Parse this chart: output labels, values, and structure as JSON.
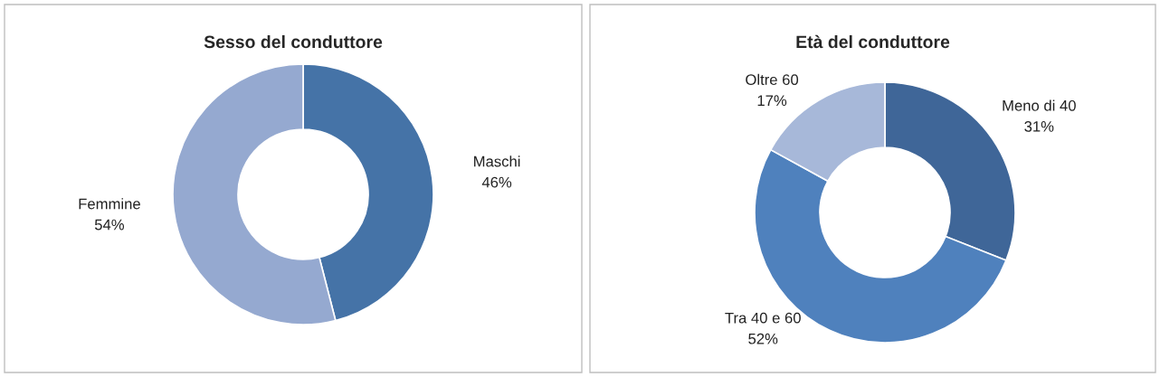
{
  "chart_data": [
    {
      "type": "donut",
      "title": "Sesso del conduttore",
      "categories": [
        "Maschi",
        "Femmine"
      ],
      "values": [
        46,
        54
      ],
      "colors": [
        "#4573a7",
        "#95a9d0"
      ],
      "value_labels": [
        "46%",
        "54%"
      ]
    },
    {
      "type": "donut",
      "title": "Età del conduttore",
      "categories": [
        "Meno di 40",
        "Tra 40 e 60",
        "Oltre 60"
      ],
      "values": [
        31,
        52,
        17
      ],
      "colors": [
        "#3f6698",
        "#4f81bd",
        "#a7b8d9"
      ],
      "value_labels": [
        "31%",
        "52%",
        "17%"
      ]
    }
  ]
}
